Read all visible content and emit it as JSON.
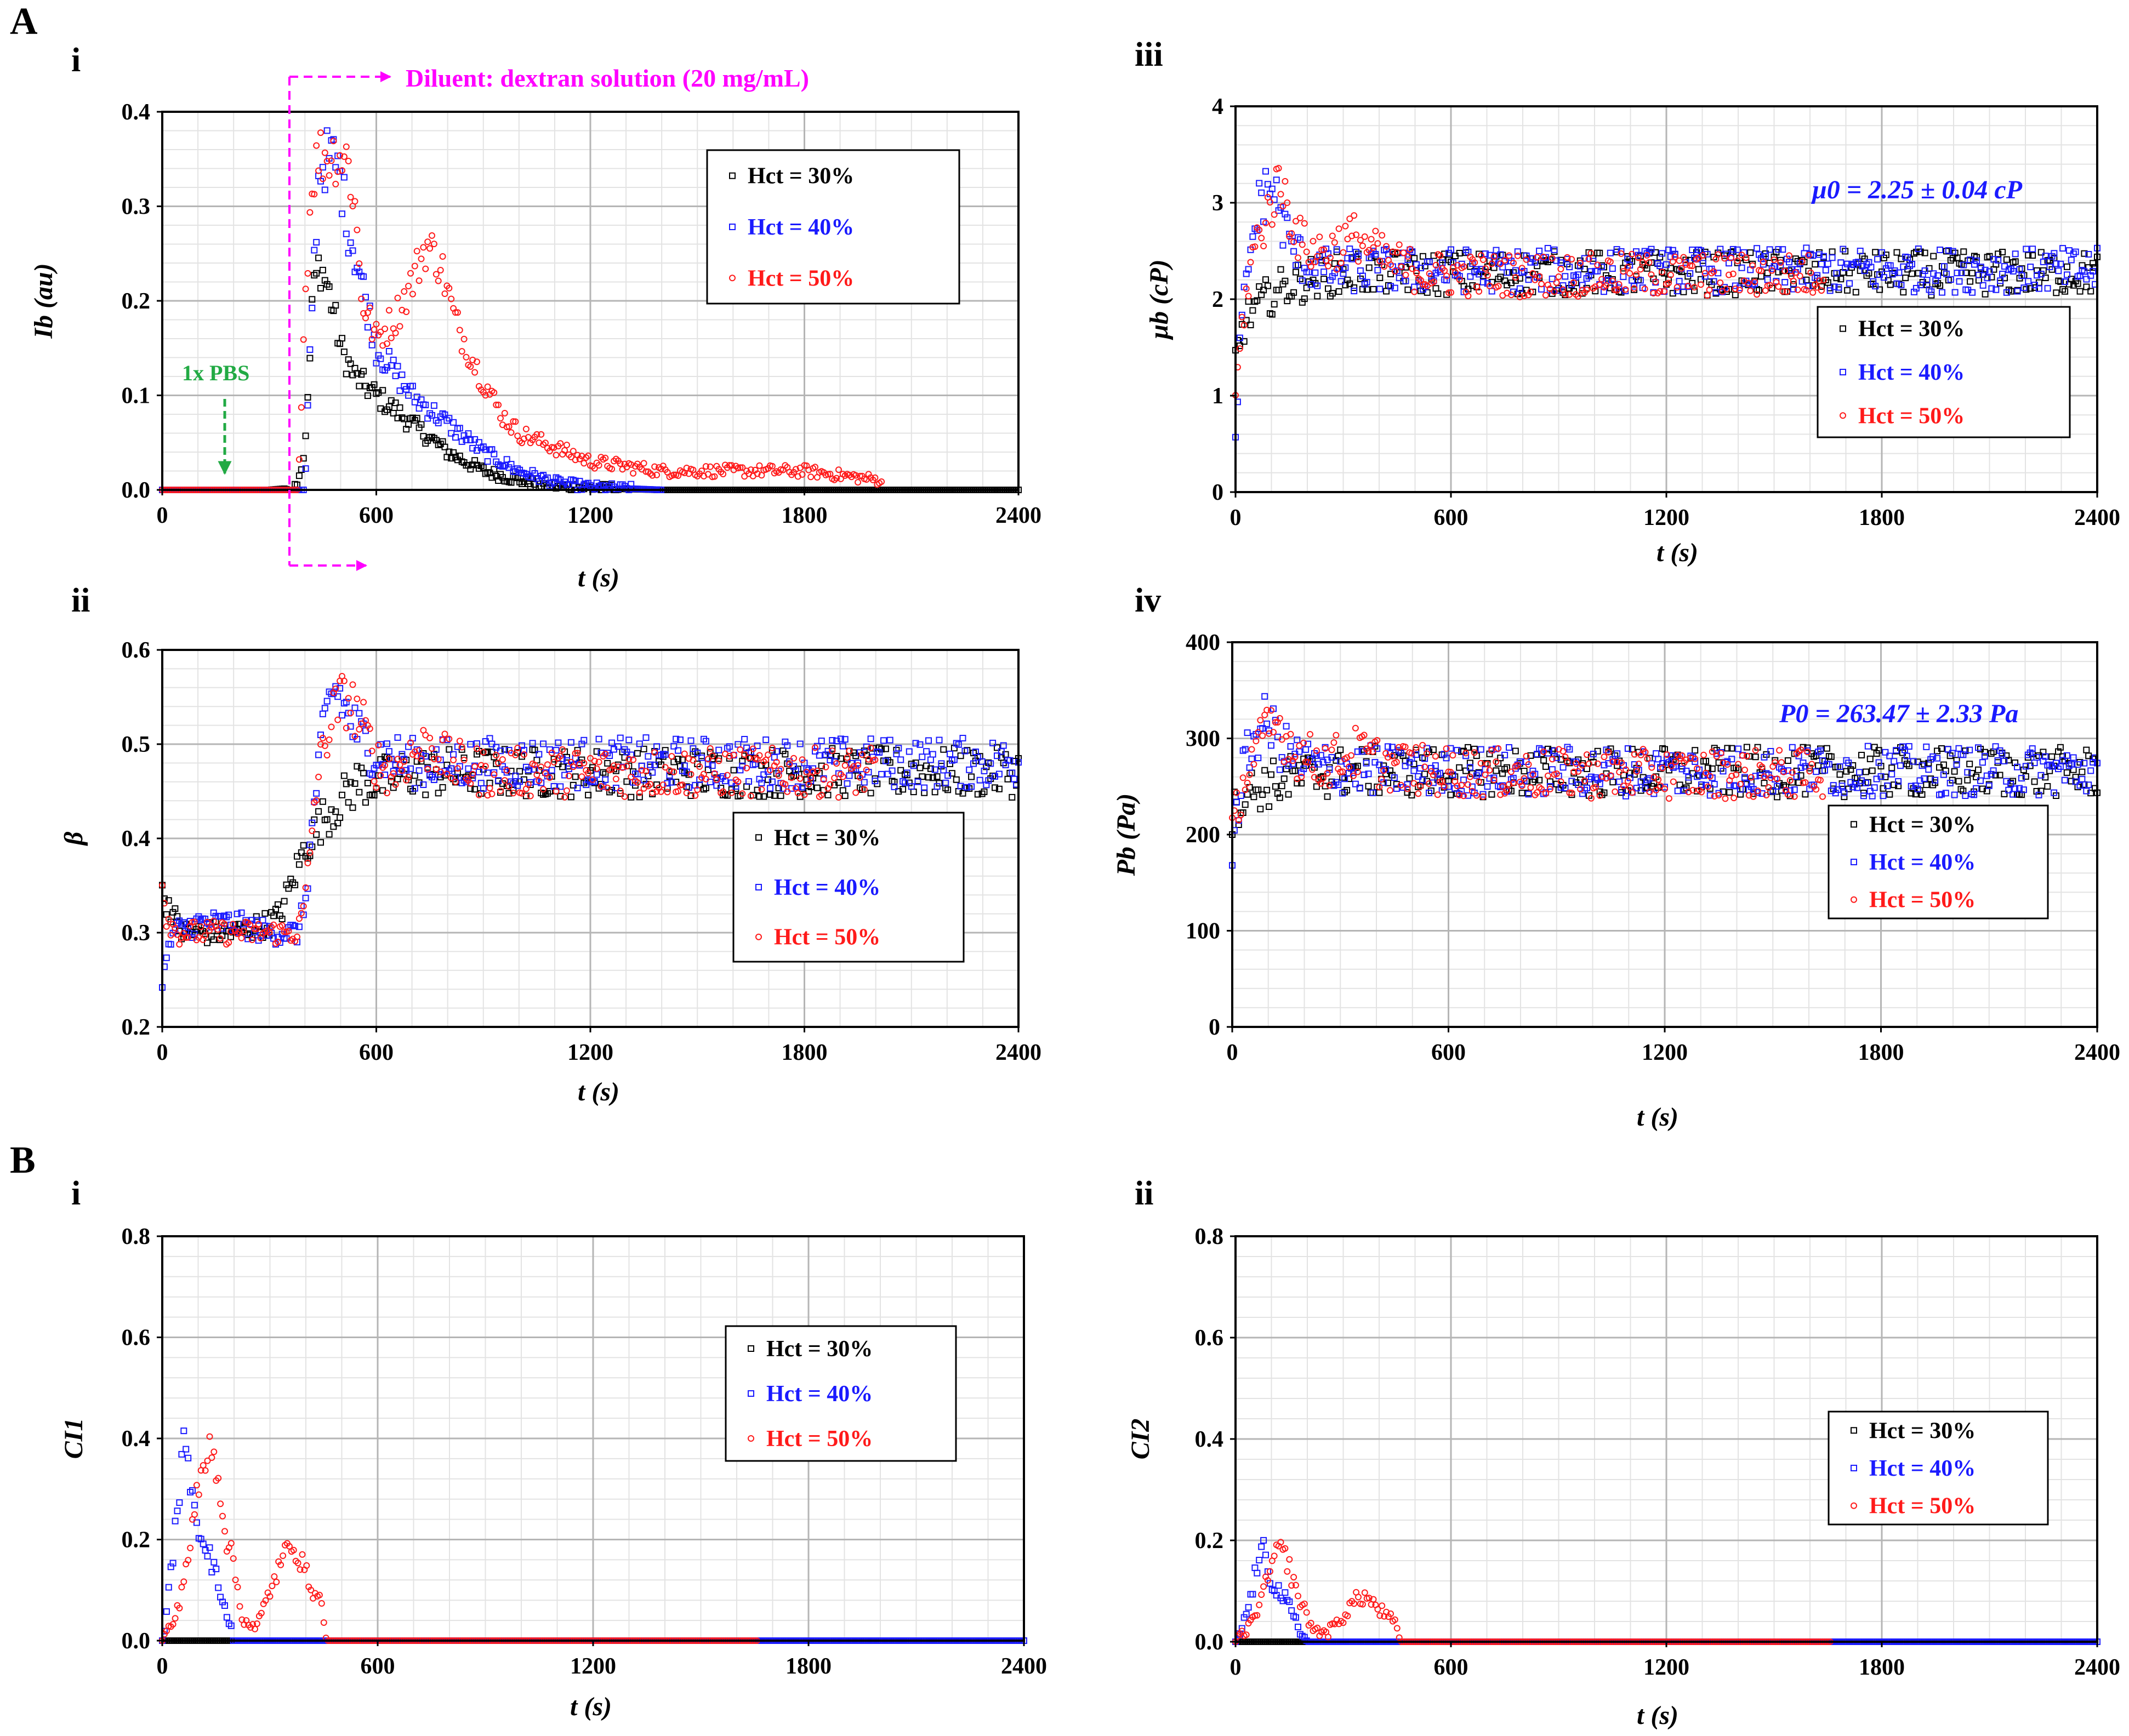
{
  "labels": {
    "section_a": "A",
    "section_b": "B"
  },
  "series_styles": [
    {
      "name": "Hct = 30%",
      "color": "#000000",
      "marker": "square"
    },
    {
      "name": "Hct = 40%",
      "color": "#1a1aff",
      "marker": "square"
    },
    {
      "name": "Hct = 50%",
      "color": "#ff1a1a",
      "marker": "circle"
    }
  ],
  "annotations": {
    "diluent": "Diluent: dextran solution (20 mg/mL)",
    "pbs": "1x PBS",
    "mu0": "μ0 = 2.25 ± 0.04 cP",
    "p0": "P0 = 263.47 ± 2.33 Pa",
    "diluent_color": "#ff00ff",
    "pbs_color": "#22aa44",
    "value_color": "#1a1aff"
  },
  "chart_data": [
    {
      "id": "Ai",
      "tag": "i",
      "type": "scatter",
      "ylabel": "Ib (au)",
      "xlabel": "t (s)",
      "xlim": [
        0,
        2400
      ],
      "ylim": [
        0,
        0.4
      ],
      "xticks": [
        "0",
        "600",
        "1200",
        "1800",
        "2400"
      ],
      "yticks": [
        "0.0",
        "0.1",
        "0.2",
        "0.3",
        "0.4"
      ],
      "legend": [
        "Hct = 30%",
        "Hct = 40%",
        "Hct = 50%"
      ],
      "series": [
        {
          "name": "Hct = 30%",
          "x": [
            0,
            300,
            370,
            395,
            410,
            420,
            440,
            460,
            480,
            500,
            540,
            600,
            700,
            800,
            900,
            1000,
            1100,
            1200,
            1400,
            2400
          ],
          "y": [
            0,
            0,
            0.002,
            0.03,
            0.1,
            0.2,
            0.24,
            0.22,
            0.19,
            0.15,
            0.12,
            0.1,
            0.07,
            0.04,
            0.02,
            0.01,
            0.004,
            0.002,
            0,
            0
          ]
        },
        {
          "name": "Hct = 40%",
          "x": [
            0,
            400,
            420,
            440,
            460,
            480,
            500,
            520,
            560,
            600,
            700,
            800,
            900,
            1000,
            1100,
            1200,
            1400
          ],
          "y": [
            0,
            0,
            0.2,
            0.34,
            0.35,
            0.35,
            0.33,
            0.28,
            0.22,
            0.15,
            0.1,
            0.07,
            0.04,
            0.02,
            0.008,
            0.003,
            0
          ]
        },
        {
          "name": "Hct = 50%",
          "x": [
            0,
            380,
            400,
            420,
            440,
            460,
            480,
            500,
            520,
            540,
            560,
            600,
            650,
            700,
            740,
            780,
            820,
            880,
            950,
            1000,
            1200,
            1400,
            1600,
            1800,
            2020
          ],
          "y": [
            0,
            0,
            0.2,
            0.33,
            0.355,
            0.355,
            0.355,
            0.355,
            0.35,
            0.3,
            0.2,
            0.16,
            0.18,
            0.22,
            0.26,
            0.24,
            0.18,
            0.13,
            0.08,
            0.06,
            0.03,
            0.02,
            0.02,
            0.02,
            0.01
          ]
        }
      ]
    },
    {
      "id": "Aii",
      "tag": "ii",
      "type": "scatter",
      "ylabel": "β",
      "xlabel": "t (s)",
      "xlim": [
        0,
        2400
      ],
      "ylim": [
        0.2,
        0.6
      ],
      "xticks": [
        "0",
        "600",
        "1200",
        "1800",
        "2400"
      ],
      "yticks": [
        "0.2",
        "0.3",
        "0.4",
        "0.5",
        "0.6"
      ],
      "legend": [
        "Hct = 30%",
        "Hct = 40%",
        "Hct = 50%"
      ],
      "series": [
        {
          "name": "Hct = 30%",
          "x": [
            0,
            20,
            50,
            100,
            200,
            300,
            330,
            360,
            400,
            450,
            500,
            550,
            600,
            700,
            800,
            1000,
            1200,
            1500,
            1800,
            2100,
            2400
          ],
          "y": [
            0.34,
            0.33,
            0.3,
            0.3,
            0.3,
            0.31,
            0.32,
            0.35,
            0.39,
            0.42,
            0.44,
            0.46,
            0.46,
            0.47,
            0.47,
            0.47,
            0.47,
            0.47,
            0.47,
            0.47,
            0.47
          ]
        },
        {
          "name": "Hct = 40%",
          "x": [
            0,
            30,
            100,
            200,
            300,
            380,
            400,
            430,
            460,
            480,
            500,
            520,
            550,
            600,
            700,
            800,
            1000,
            1200,
            1500,
            1800,
            2100,
            2400
          ],
          "y": [
            0.25,
            0.3,
            0.31,
            0.31,
            0.3,
            0.3,
            0.33,
            0.45,
            0.53,
            0.56,
            0.55,
            0.53,
            0.51,
            0.49,
            0.48,
            0.48,
            0.48,
            0.48,
            0.48,
            0.48,
            0.48,
            0.48
          ]
        },
        {
          "name": "Hct = 50%",
          "x": [
            0,
            10,
            40,
            100,
            200,
            300,
            380,
            400,
            430,
            460,
            490,
            520,
            560,
            600,
            650,
            700,
            760,
            800,
            900,
            1000,
            1200,
            1500,
            1800,
            2000
          ],
          "y": [
            0.36,
            0.32,
            0.3,
            0.3,
            0.3,
            0.3,
            0.3,
            0.33,
            0.45,
            0.51,
            0.54,
            0.55,
            0.52,
            0.48,
            0.47,
            0.49,
            0.5,
            0.48,
            0.47,
            0.47,
            0.47,
            0.47,
            0.47,
            0.47
          ]
        }
      ]
    },
    {
      "id": "Aiii",
      "tag": "iii",
      "type": "scatter",
      "ylabel": "μb (cP)",
      "xlabel": "t (s)",
      "xlim": [
        0,
        2400
      ],
      "ylim": [
        0,
        4
      ],
      "xticks": [
        "0",
        "600",
        "1200",
        "1800",
        "2400"
      ],
      "yticks": [
        "0",
        "1",
        "2",
        "3",
        "4"
      ],
      "legend": [
        "Hct = 30%",
        "Hct = 40%",
        "Hct = 50%"
      ],
      "series": [
        {
          "name": "Hct = 30%",
          "x": [
            0,
            20,
            50,
            100,
            150,
            200,
            250,
            300,
            400,
            600,
            800,
            1000,
            1200,
            1400,
            1600,
            1800,
            2000,
            2200,
            2400
          ],
          "y": [
            1.4,
            1.7,
            1.9,
            2.05,
            2.15,
            2.2,
            2.25,
            2.28,
            2.28,
            2.27,
            2.27,
            2.27,
            2.27,
            2.27,
            2.27,
            2.27,
            2.27,
            2.27,
            2.27
          ]
        },
        {
          "name": "Hct = 40%",
          "x": [
            0,
            10,
            30,
            60,
            90,
            110,
            130,
            160,
            200,
            250,
            300,
            400,
            600,
            800,
            1000,
            1200,
            1400,
            1600,
            1800,
            2000,
            2200,
            2400
          ],
          "y": [
            0.5,
            1.4,
            2.2,
            2.9,
            3.2,
            3.1,
            2.8,
            2.5,
            2.35,
            2.3,
            2.3,
            2.3,
            2.3,
            2.3,
            2.3,
            2.3,
            2.3,
            2.3,
            2.3,
            2.3,
            2.3,
            2.3
          ]
        },
        {
          "name": "Hct = 50%",
          "x": [
            0,
            20,
            50,
            80,
            110,
            130,
            150,
            180,
            220,
            260,
            300,
            340,
            380,
            420,
            500,
            600,
            800,
            1000,
            1200,
            1400,
            1640
          ],
          "y": [
            1.0,
            1.8,
            2.5,
            2.8,
            3.1,
            3.2,
            2.9,
            2.6,
            2.5,
            2.5,
            2.6,
            2.65,
            2.5,
            2.4,
            2.3,
            2.25,
            2.25,
            2.25,
            2.25,
            2.25,
            2.25
          ]
        }
      ]
    },
    {
      "id": "Aiv",
      "tag": "iv",
      "type": "scatter",
      "ylabel": "Pb (Pa)",
      "xlabel": "t (s)",
      "xlim": [
        0,
        2400
      ],
      "ylim": [
        0,
        400
      ],
      "xticks": [
        "0",
        "600",
        "1200",
        "1800",
        "2400"
      ],
      "yticks": [
        "0",
        "100",
        "200",
        "300",
        "400"
      ],
      "legend": [
        "Hct = 30%",
        "Hct = 40%",
        "Hct = 50%"
      ],
      "series": [
        {
          "name": "Hct = 30%",
          "x": [
            0,
            20,
            50,
            100,
            150,
            200,
            250,
            300,
            400,
            600,
            800,
            1000,
            1200,
            1400,
            1600,
            1800,
            2000,
            2200,
            2400
          ],
          "y": [
            220,
            235,
            245,
            252,
            257,
            260,
            263,
            265,
            266,
            265,
            265,
            265,
            265,
            265,
            265,
            265,
            265,
            265,
            265
          ]
        },
        {
          "name": "Hct = 40%",
          "x": [
            0,
            10,
            30,
            60,
            90,
            110,
            130,
            160,
            200,
            250,
            300,
            400,
            600,
            800,
            1000,
            1200,
            1400,
            1600,
            1800,
            2000,
            2200,
            2400
          ],
          "y": [
            175,
            215,
            265,
            300,
            315,
            310,
            295,
            282,
            275,
            270,
            268,
            267,
            266,
            266,
            266,
            266,
            266,
            266,
            266,
            266,
            266,
            266
          ]
        },
        {
          "name": "Hct = 50%",
          "x": [
            0,
            20,
            50,
            80,
            110,
            130,
            150,
            180,
            220,
            260,
            300,
            340,
            380,
            420,
            500,
            600,
            800,
            1000,
            1200,
            1400,
            1640
          ],
          "y": [
            200,
            240,
            275,
            295,
            310,
            315,
            300,
            285,
            278,
            275,
            280,
            285,
            280,
            273,
            268,
            265,
            263,
            263,
            263,
            263,
            263
          ]
        }
      ]
    },
    {
      "id": "Bi",
      "tag": "i",
      "type": "scatter",
      "ylabel": "CI1",
      "xlabel": "t (s)",
      "xlim": [
        0,
        2400
      ],
      "ylim": [
        0,
        0.8
      ],
      "xticks": [
        "0",
        "600",
        "1200",
        "1800",
        "2400"
      ],
      "yticks": [
        "0.0",
        "0.2",
        "0.4",
        "0.6",
        "0.8"
      ],
      "legend": [
        "Hct = 30%",
        "Hct = 40%",
        "Hct = 50%"
      ],
      "series": [
        {
          "name": "Hct = 30%",
          "x": [
            0,
            100,
            200,
            300,
            400,
            500,
            800,
            1200,
            1600,
            2000,
            2400
          ],
          "y": [
            0,
            0,
            0,
            0,
            0,
            0,
            0,
            0,
            0,
            0,
            0
          ]
        },
        {
          "name": "Hct = 40%",
          "x": [
            0,
            20,
            40,
            60,
            80,
            100,
            120,
            140,
            160,
            180,
            200,
            300,
            600,
            1200,
            1800,
            2400
          ],
          "y": [
            0,
            0.1,
            0.25,
            0.38,
            0.32,
            0.22,
            0.2,
            0.15,
            0.1,
            0.05,
            0,
            0,
            0,
            0,
            0,
            0
          ]
        },
        {
          "name": "Hct = 50%",
          "x": [
            0,
            40,
            80,
            100,
            120,
            140,
            160,
            180,
            200,
            220,
            260,
            300,
            330,
            360,
            390,
            420,
            440,
            460,
            800,
            1200,
            1660
          ],
          "y": [
            0,
            0.05,
            0.2,
            0.3,
            0.35,
            0.4,
            0.3,
            0.2,
            0.15,
            0.05,
            0.02,
            0.1,
            0.15,
            0.2,
            0.15,
            0.1,
            0.08,
            0,
            0,
            0,
            0
          ]
        }
      ]
    },
    {
      "id": "Bii",
      "tag": "ii",
      "type": "scatter",
      "ylabel": "CI2",
      "xlabel": "t (s)",
      "xlim": [
        0,
        2400
      ],
      "ylim": [
        0,
        0.8
      ],
      "xticks": [
        "0",
        "600",
        "1200",
        "1800",
        "2400"
      ],
      "yticks": [
        "0.0",
        "0.2",
        "0.4",
        "0.6",
        "0.8"
      ],
      "legend": [
        "Hct = 30%",
        "Hct = 40%",
        "Hct = 50%"
      ],
      "series": [
        {
          "name": "Hct = 30%",
          "x": [
            0,
            100,
            200,
            300,
            400,
            500,
            800,
            1200,
            1600,
            2000,
            2400
          ],
          "y": [
            0,
            0,
            0,
            0,
            0,
            0,
            0,
            0,
            0,
            0,
            0
          ]
        },
        {
          "name": "Hct = 40%",
          "x": [
            0,
            20,
            40,
            60,
            80,
            100,
            120,
            140,
            160,
            180,
            200,
            300,
            600,
            1200,
            1800,
            2400
          ],
          "y": [
            0,
            0.03,
            0.08,
            0.15,
            0.18,
            0.12,
            0.1,
            0.08,
            0.05,
            0.02,
            0,
            0,
            0,
            0,
            0,
            0
          ]
        },
        {
          "name": "Hct = 50%",
          "x": [
            0,
            40,
            80,
            100,
            120,
            140,
            160,
            180,
            200,
            220,
            260,
            300,
            330,
            360,
            390,
            420,
            440,
            460,
            800,
            1200,
            1660
          ],
          "y": [
            0,
            0.03,
            0.1,
            0.15,
            0.18,
            0.17,
            0.12,
            0.08,
            0.05,
            0.02,
            0.02,
            0.05,
            0.08,
            0.09,
            0.07,
            0.05,
            0.04,
            0,
            0,
            0,
            0
          ]
        }
      ]
    }
  ]
}
